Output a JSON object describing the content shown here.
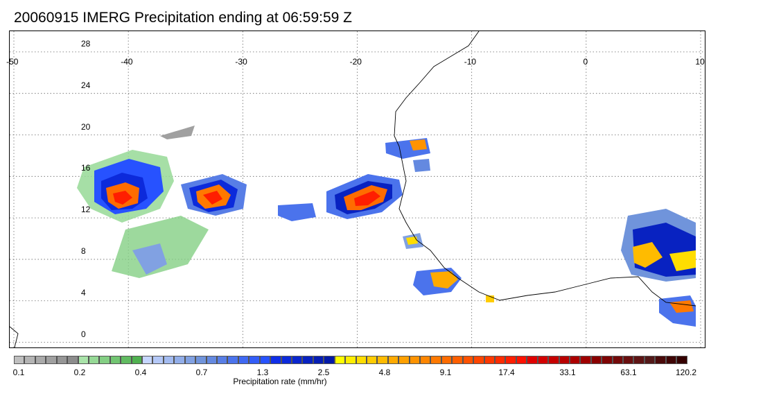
{
  "title": "20060915 IMERG Precipitation ending at 06:59:59 Z",
  "map": {
    "lon_labels": [
      "-50",
      "-40",
      "-30",
      "-20",
      "-10",
      "0",
      "10"
    ],
    "lat_labels": [
      "28",
      "24",
      "20",
      "16",
      "12",
      "8",
      "4",
      "0"
    ],
    "lon_range": [
      -50,
      10
    ],
    "lat_range": [
      -0.5,
      30
    ],
    "grid": "dotted"
  },
  "legend": {
    "title": "Precipitation rate (mm/hr)",
    "tick_labels": [
      "0.1",
      "0.2",
      "0.4",
      "0.7",
      "1.3",
      "2.5",
      "4.8",
      "9.1",
      "17.4",
      "33.1",
      "63.1",
      "120.2"
    ],
    "colors": [
      "#bfbfbf",
      "#b4b4b4",
      "#aaaaaa",
      "#a0a0a0",
      "#969696",
      "#8c8c8c",
      "#a9e3a9",
      "#96d996",
      "#84cf84",
      "#72c572",
      "#61bb61",
      "#50b150",
      "#c6d6ff",
      "#b4c8f7",
      "#a3bbf0",
      "#92aee9",
      "#81a1e2",
      "#7094db",
      "#6489e0",
      "#587ee6",
      "#4b73ec",
      "#3f68f2",
      "#335df8",
      "#2752ff",
      "#0f2ee8",
      "#0c2adb",
      "#0a26ce",
      "#0822c1",
      "#061eb4",
      "#041aa8",
      "#ffff00",
      "#ffee00",
      "#ffdd00",
      "#ffcc00",
      "#ffbb00",
      "#ffaa00",
      "#ffa000",
      "#ff9300",
      "#ff8600",
      "#ff7900",
      "#ff6c00",
      "#ff5f00",
      "#ff5200",
      "#ff4500",
      "#ff3800",
      "#ff2b00",
      "#ff1e00",
      "#ff1100",
      "#e00000",
      "#d30000",
      "#c60000",
      "#b90000",
      "#ac0000",
      "#9f0000",
      "#8a0000",
      "#7f0505",
      "#740a0a",
      "#690f0f",
      "#5e1414",
      "#531919",
      "#4a0a0a",
      "#3f0505",
      "#340000"
    ]
  }
}
